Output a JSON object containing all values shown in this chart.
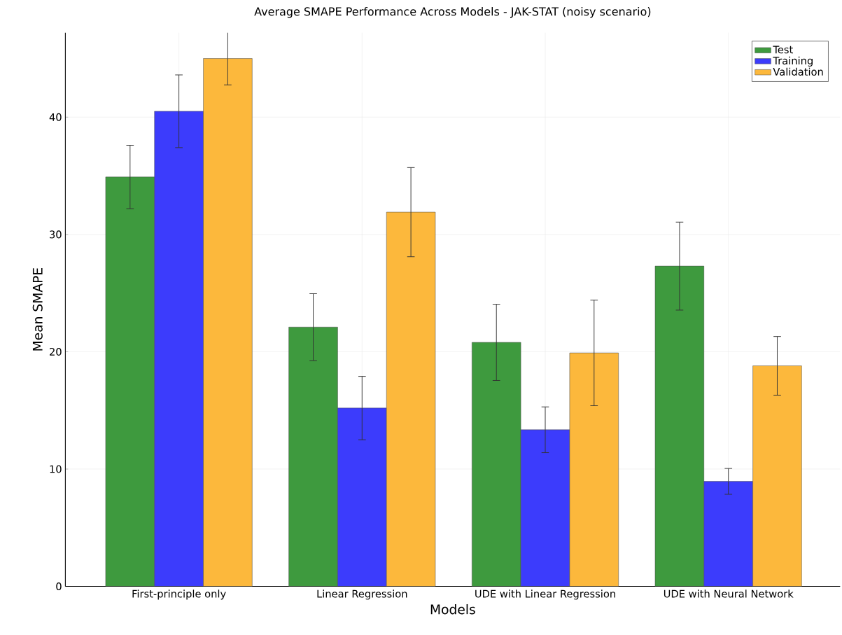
{
  "chart_data": {
    "type": "bar",
    "title": "Average SMAPE Performance Across Models - JAK-STAT (noisy scenario)",
    "xlabel": "Models",
    "ylabel": "Mean SMAPE",
    "categories": [
      "First-principle only",
      "Linear Regression",
      "UDE with Linear Regression",
      "UDE with Neural Network"
    ],
    "series": [
      {
        "name": "Test",
        "color": "#3e9a3e",
        "values": [
          34.9,
          22.1,
          20.8,
          27.3
        ],
        "errors": [
          2.7,
          2.85,
          3.25,
          3.75
        ]
      },
      {
        "name": "Training",
        "color": "#3c3cfc",
        "values": [
          40.5,
          15.2,
          13.35,
          8.95
        ],
        "errors": [
          3.1,
          2.7,
          1.95,
          1.1
        ]
      },
      {
        "name": "Validation",
        "color": "#fcb83c",
        "values": [
          45.0,
          31.9,
          19.9,
          18.8
        ],
        "errors": [
          2.25,
          3.8,
          4.5,
          2.5
        ]
      }
    ],
    "ylim": [
      0,
      47.2
    ],
    "yticks": [
      0,
      10,
      20,
      30,
      40
    ],
    "grid": true,
    "legend": "top right"
  }
}
